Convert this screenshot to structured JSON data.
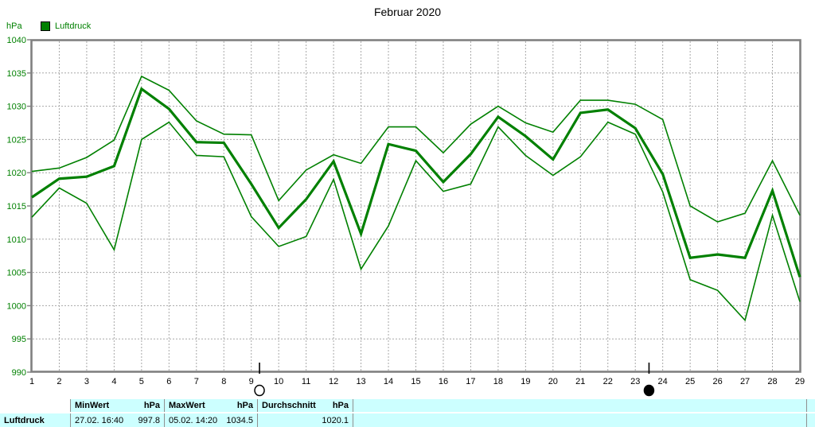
{
  "title": "Februar 2020",
  "y_axis_unit": "hPa",
  "legend": {
    "label": "Luftdruck"
  },
  "chart_data": {
    "type": "line",
    "title": "Februar 2020",
    "ylabel": "hPa",
    "ylim": [
      990,
      1040
    ],
    "ytick_step": 5,
    "grid": true,
    "x": [
      1,
      2,
      3,
      4,
      5,
      6,
      7,
      8,
      9,
      10,
      11,
      12,
      13,
      14,
      15,
      16,
      17,
      18,
      19,
      20,
      21,
      22,
      23,
      24,
      25,
      26,
      27,
      28,
      29
    ],
    "series": [
      {
        "name": "Luftdruck Maximum",
        "values": [
          1020.2,
          1020.7,
          1022.3,
          1024.9,
          1034.5,
          1032.4,
          1027.8,
          1025.8,
          1025.7,
          1015.8,
          1020.4,
          1022.7,
          1021.4,
          1026.9,
          1026.9,
          1023.0,
          1027.3,
          1030.0,
          1027.5,
          1026.1,
          1030.9,
          1030.9,
          1030.3,
          1028.0,
          1015.0,
          1012.6,
          1013.9,
          1021.8,
          1013.6
        ]
      },
      {
        "name": "Luftdruck Mittel",
        "values": [
          1016.3,
          1019.1,
          1019.4,
          1021.0,
          1032.6,
          1029.6,
          1024.6,
          1024.5,
          1018.3,
          1011.7,
          1016.0,
          1021.7,
          1010.8,
          1024.3,
          1023.3,
          1018.6,
          1022.8,
          1028.4,
          1025.5,
          1022.0,
          1029.0,
          1029.5,
          1026.7,
          1019.8,
          1007.2,
          1007.7,
          1007.2,
          1017.3,
          1004.3
        ]
      },
      {
        "name": "Luftdruck Minimum",
        "values": [
          1013.3,
          1017.7,
          1015.4,
          1008.4,
          1025.0,
          1027.6,
          1022.6,
          1022.4,
          1013.4,
          1008.9,
          1010.4,
          1019.0,
          1005.5,
          1012.0,
          1021.8,
          1017.2,
          1018.3,
          1026.9,
          1022.6,
          1019.6,
          1022.4,
          1027.6,
          1025.8,
          1017.1,
          1003.9,
          1002.3,
          997.8,
          1013.6,
          1000.6
        ]
      }
    ],
    "line_color": "#008000",
    "moon_markers": [
      {
        "symbol": "open-circle",
        "day": 9.3
      },
      {
        "symbol": "filled-circle",
        "day": 23.5
      }
    ]
  },
  "table": {
    "row_label": "Luftdruck",
    "columns": [
      {
        "header_left": "MinWert",
        "header_right": "hPa",
        "value_left": "27.02. 16:40",
        "value_right": "997.8"
      },
      {
        "header_left": "MaxWert",
        "header_right": "hPa",
        "value_left": "05.02. 14:20",
        "value_right": "1034.5"
      },
      {
        "header_left": "Durchschnitt",
        "header_right": "hPa",
        "value_left": "",
        "value_right": "1020.1"
      }
    ]
  },
  "colors": {
    "line": "#008000",
    "axis_label_y": "#008000",
    "axis_label_x": "#000000",
    "frame": "#808080",
    "grid": "#a8a8a8",
    "table_bg": "#ccffff",
    "table_sep": "#909090"
  }
}
